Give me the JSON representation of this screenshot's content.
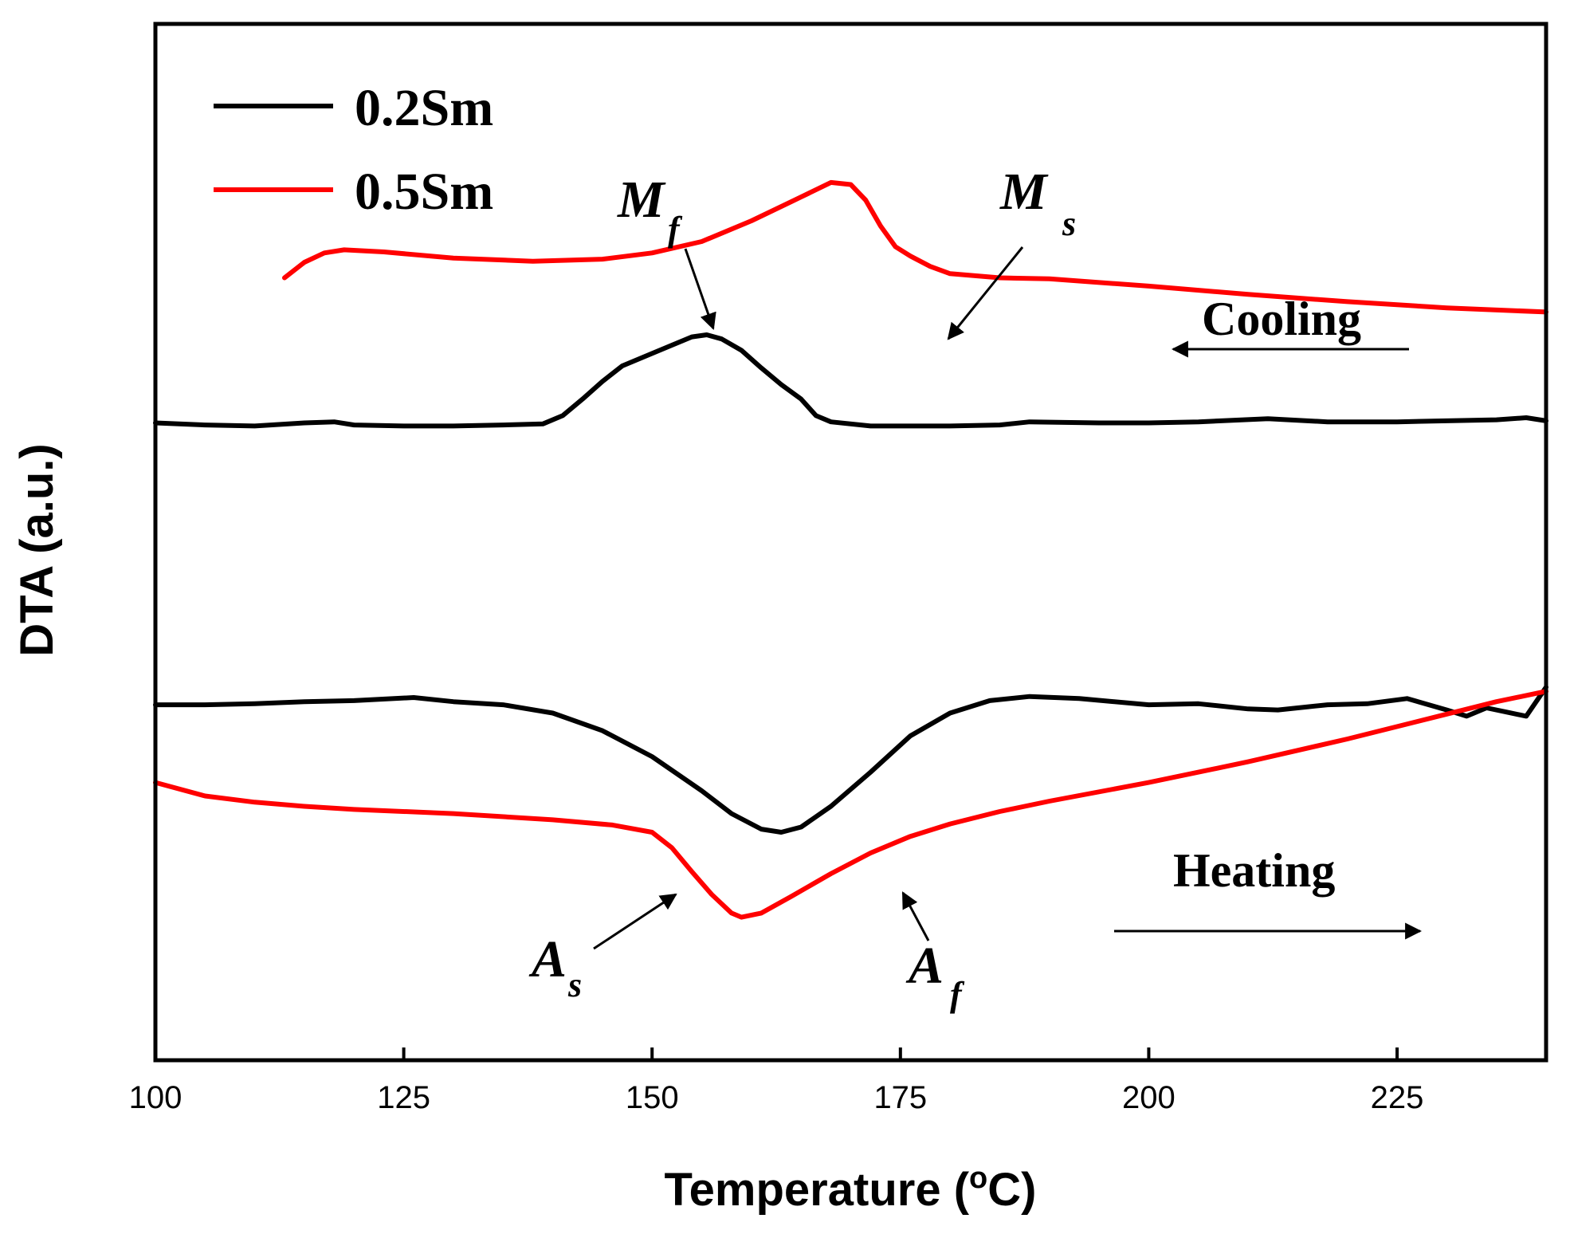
{
  "chart_data": {
    "type": "line",
    "title": "",
    "xlabel": "Temperature (°C)",
    "xlabel_parts": [
      "Temperature (",
      "o",
      "C)"
    ],
    "ylabel": "DTA (a.u.)",
    "xlim": [
      100,
      240
    ],
    "ylim": [
      0,
      100
    ],
    "y_ticks_shown": false,
    "grid": false,
    "x_ticks": [
      100,
      125,
      150,
      175,
      200,
      225
    ],
    "legend": {
      "placement": "top-left",
      "entries": [
        "0.2Sm",
        "0.5Sm"
      ]
    },
    "colors": {
      "0.2Sm": "#000000",
      "0.5Sm": "#ff0000"
    },
    "series": [
      {
        "name": "0.2Sm",
        "branch": "cooling",
        "color": "#000000",
        "points": [
          [
            100,
            61.5
          ],
          [
            105,
            61.3
          ],
          [
            110,
            61.2
          ],
          [
            115,
            61.5
          ],
          [
            118,
            61.6
          ],
          [
            120,
            61.3
          ],
          [
            125,
            61.2
          ],
          [
            130,
            61.2
          ],
          [
            135,
            61.3
          ],
          [
            139,
            61.4
          ],
          [
            141,
            62.2
          ],
          [
            143,
            63.8
          ],
          [
            145,
            65.5
          ],
          [
            147,
            67.0
          ],
          [
            150,
            68.2
          ],
          [
            152,
            69.0
          ],
          [
            154,
            69.8
          ],
          [
            155.5,
            70.0
          ],
          [
            157,
            69.6
          ],
          [
            159,
            68.5
          ],
          [
            161,
            66.8
          ],
          [
            163,
            65.2
          ],
          [
            165,
            63.8
          ],
          [
            166.5,
            62.2
          ],
          [
            168,
            61.6
          ],
          [
            172,
            61.2
          ],
          [
            180,
            61.2
          ],
          [
            185,
            61.3
          ],
          [
            188,
            61.6
          ],
          [
            195,
            61.5
          ],
          [
            200,
            61.5
          ],
          [
            205,
            61.6
          ],
          [
            212,
            61.9
          ],
          [
            218,
            61.6
          ],
          [
            225,
            61.6
          ],
          [
            230,
            61.7
          ],
          [
            235,
            61.8
          ],
          [
            238,
            62.0
          ],
          [
            240,
            61.7
          ]
        ]
      },
      {
        "name": "0.5Sm",
        "branch": "cooling",
        "color": "#ff0000",
        "points": [
          [
            113,
            75.5
          ],
          [
            115,
            77.0
          ],
          [
            117,
            77.9
          ],
          [
            119,
            78.2
          ],
          [
            123,
            78.0
          ],
          [
            130,
            77.4
          ],
          [
            138,
            77.1
          ],
          [
            145,
            77.3
          ],
          [
            150,
            77.9
          ],
          [
            155,
            79.0
          ],
          [
            160,
            81.0
          ],
          [
            165,
            83.3
          ],
          [
            168,
            84.7
          ],
          [
            170,
            84.5
          ],
          [
            171.5,
            83.0
          ],
          [
            173,
            80.5
          ],
          [
            174.5,
            78.5
          ],
          [
            176,
            77.6
          ],
          [
            178,
            76.6
          ],
          [
            180,
            75.9
          ],
          [
            185,
            75.5
          ],
          [
            190,
            75.4
          ],
          [
            200,
            74.7
          ],
          [
            210,
            73.9
          ],
          [
            220,
            73.2
          ],
          [
            230,
            72.6
          ],
          [
            240,
            72.2
          ]
        ]
      },
      {
        "name": "0.2Sm",
        "branch": "heating",
        "color": "#000000",
        "points": [
          [
            100,
            34.3
          ],
          [
            105,
            34.3
          ],
          [
            110,
            34.4
          ],
          [
            115,
            34.6
          ],
          [
            120,
            34.7
          ],
          [
            126,
            35.0
          ],
          [
            130,
            34.6
          ],
          [
            135,
            34.3
          ],
          [
            140,
            33.5
          ],
          [
            145,
            31.8
          ],
          [
            150,
            29.3
          ],
          [
            155,
            26.0
          ],
          [
            158,
            23.8
          ],
          [
            161,
            22.3
          ],
          [
            163,
            22.0
          ],
          [
            165,
            22.5
          ],
          [
            168,
            24.5
          ],
          [
            172,
            27.8
          ],
          [
            176,
            31.3
          ],
          [
            180,
            33.5
          ],
          [
            184,
            34.7
          ],
          [
            188,
            35.1
          ],
          [
            193,
            34.9
          ],
          [
            200,
            34.3
          ],
          [
            205,
            34.4
          ],
          [
            210,
            33.9
          ],
          [
            213,
            33.8
          ],
          [
            218,
            34.3
          ],
          [
            222,
            34.4
          ],
          [
            226,
            34.9
          ],
          [
            230,
            33.8
          ],
          [
            232,
            33.2
          ],
          [
            234,
            34.0
          ],
          [
            236,
            33.6
          ],
          [
            238,
            33.2
          ],
          [
            240,
            36.0
          ]
        ]
      },
      {
        "name": "0.5Sm",
        "branch": "heating",
        "color": "#ff0000",
        "points": [
          [
            100,
            26.8
          ],
          [
            105,
            25.5
          ],
          [
            110,
            24.9
          ],
          [
            115,
            24.5
          ],
          [
            120,
            24.2
          ],
          [
            130,
            23.8
          ],
          [
            140,
            23.2
          ],
          [
            146,
            22.7
          ],
          [
            150,
            22.0
          ],
          [
            152,
            20.5
          ],
          [
            154,
            18.2
          ],
          [
            156,
            16.0
          ],
          [
            158,
            14.2
          ],
          [
            159,
            13.8
          ],
          [
            161,
            14.2
          ],
          [
            164,
            15.8
          ],
          [
            168,
            18.0
          ],
          [
            172,
            20.0
          ],
          [
            176,
            21.6
          ],
          [
            180,
            22.8
          ],
          [
            185,
            24.0
          ],
          [
            190,
            25.0
          ],
          [
            200,
            26.8
          ],
          [
            210,
            28.8
          ],
          [
            220,
            31.0
          ],
          [
            230,
            33.4
          ],
          [
            235,
            34.6
          ],
          [
            240,
            35.6
          ]
        ]
      }
    ],
    "annotations": [
      {
        "main": "M",
        "sub": "f",
        "target": [
          156,
          78.7
        ]
      },
      {
        "main": "M",
        "sub": "s",
        "target": [
          178,
          76.6
        ]
      },
      {
        "main": "A",
        "sub": "s",
        "target": [
          152.5,
          20.5
        ]
      },
      {
        "main": "A",
        "sub": "f",
        "target": [
          175,
          21.2
        ]
      }
    ],
    "direction_labels": [
      {
        "text": "Cooling",
        "arrow": "left"
      },
      {
        "text": "Heating",
        "arrow": "right"
      }
    ]
  }
}
